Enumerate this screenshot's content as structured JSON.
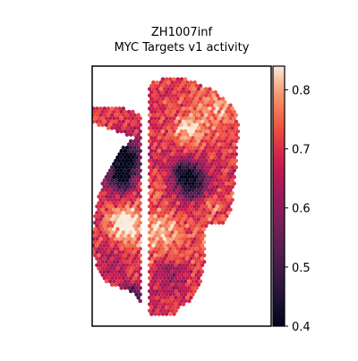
{
  "chart_data": {
    "type": "scatter",
    "subtype": "spatial hexagonal spot map",
    "title_line1": "ZH1007inf",
    "title_line2": "MYC Targets v1 activity",
    "xlabel": "",
    "ylabel": "",
    "axis_ticks_visible": false,
    "grid": false,
    "legend": "none",
    "colorbar": {
      "position": "right",
      "colormap": "rocket",
      "range": [
        0.4,
        0.84
      ],
      "ticks": [
        "0.4",
        "0.5",
        "0.6",
        "0.7",
        "0.8"
      ],
      "tick_values": [
        0.4,
        0.5,
        0.6,
        0.7,
        0.8
      ]
    },
    "notes": "approximately 1900 hexagonal spots, each colored by estimated activity value"
  }
}
